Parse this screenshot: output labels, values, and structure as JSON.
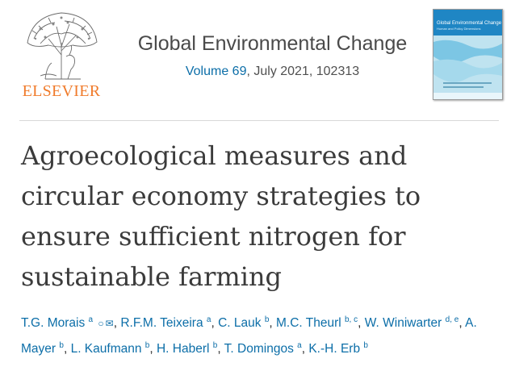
{
  "publisher": {
    "logo_text": "ELSEVIER",
    "logo_color": "#f07b2b"
  },
  "journal": {
    "name": "Global Environmental Change",
    "volume_link": "Volume 69",
    "citation_rest": ", July 2021, 102313",
    "cover_title": "Global Environmental Change",
    "cover_subtitle": "Human and Policy Dimensions"
  },
  "article": {
    "title_lines": [
      "Agroecological measures and",
      "circular economy strategies to",
      "ensure sufficient nitrogen for",
      "sustainable farming"
    ]
  },
  "authors": [
    {
      "name": "T.G. Morais",
      "sup": "a",
      "icons": [
        "person-icon",
        "email-icon"
      ]
    },
    {
      "name": "R.F.M. Teixeira",
      "sup": "a"
    },
    {
      "name": "C. Lauk",
      "sup": "b"
    },
    {
      "name": "M.C. Theurl",
      "sup": "b, c"
    },
    {
      "name": "W. Winiwarter",
      "sup": "d, e"
    },
    {
      "name": "A. Mayer",
      "sup": "b"
    },
    {
      "name": "L. Kaufmann",
      "sup": "b"
    },
    {
      "name": "H. Haberl",
      "sup": "b"
    },
    {
      "name": "T. Domingos",
      "sup": "a"
    },
    {
      "name": "K.-H. Erb",
      "sup": "b"
    }
  ],
  "colors": {
    "link": "#0c6ea8",
    "text": "#3b3b3b"
  }
}
